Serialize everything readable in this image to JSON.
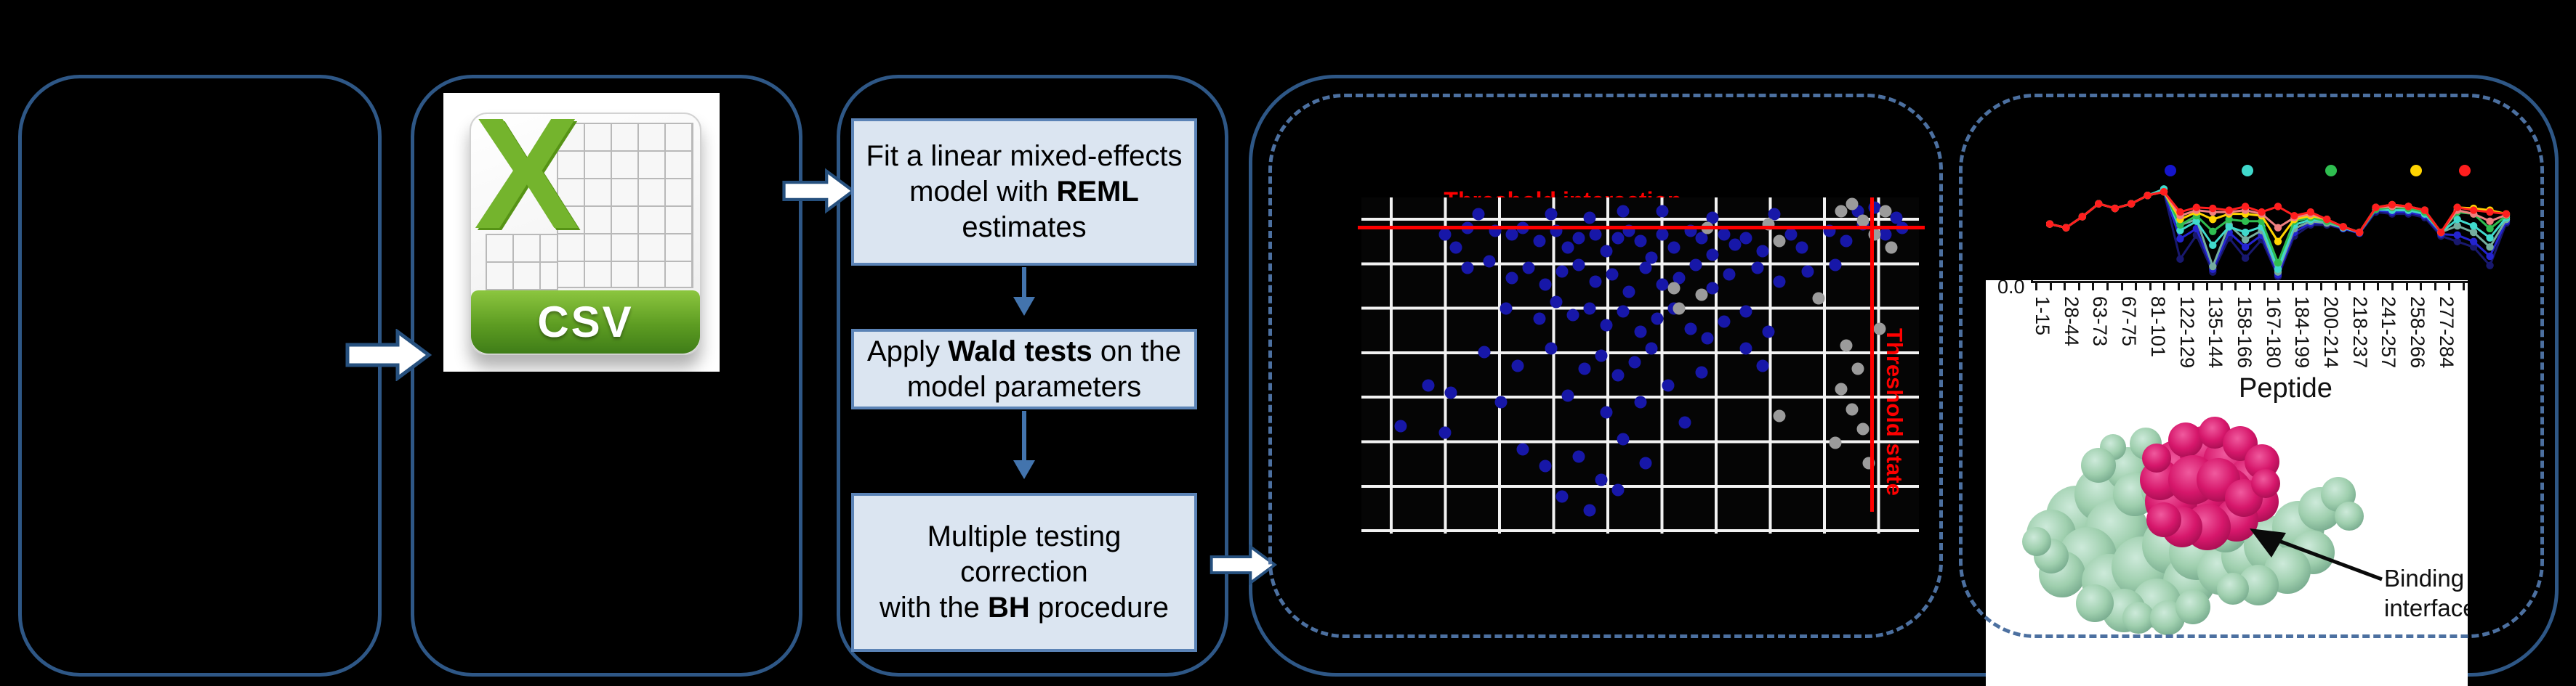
{
  "csv_icon": {
    "label": "CSV",
    "x_letter": "X"
  },
  "flowchart": {
    "step1": {
      "pre": "Fit a linear mixed-effects model with ",
      "bold": "REML",
      "post": " estimates"
    },
    "step2": {
      "pre": "Apply ",
      "bold": "Wald tests",
      "post": " on the model parameters"
    },
    "step3": {
      "line1": "Multiple testing",
      "line2": "correction",
      "line3_pre": "with the ",
      "line3_bold": "BH",
      "line3_post": " procedure"
    }
  },
  "protein": {
    "annotation": "Binding interface"
  },
  "colors": {
    "panel_border": "#2e5786",
    "dashed_border": "#4c70a0",
    "flow_box_fill": "#dbe5f1",
    "flow_box_border": "#5b83b6",
    "threshold_red": "#ff0000",
    "csv_green": "#74b42d",
    "scatter_blue": "#1717a8",
    "scatter_gray": "#9b9b9b",
    "protein_green": "#9fcfae",
    "protein_magenta": "#d6176b"
  },
  "chart_data": [
    {
      "type": "scatter",
      "title": "Threshold interaction",
      "vline_label": "Threshold state",
      "coords": "percent_of_plot_area",
      "grid": true,
      "series": [
        {
          "name": "interaction-points-blue",
          "color": "#1717a8",
          "points": [
            [
              21,
              5
            ],
            [
              34,
              5
            ],
            [
              41,
              6
            ],
            [
              47,
              4
            ],
            [
              54,
              4
            ],
            [
              74,
              5
            ],
            [
              89,
              4
            ],
            [
              92,
              3
            ],
            [
              96,
              6
            ],
            [
              63,
              6
            ],
            [
              15,
              11
            ],
            [
              17,
              15
            ],
            [
              19,
              9
            ],
            [
              24,
              10
            ],
            [
              27,
              11
            ],
            [
              29,
              9
            ],
            [
              32,
              13
            ],
            [
              35,
              10
            ],
            [
              37,
              15
            ],
            [
              39,
              12
            ],
            [
              42,
              11
            ],
            [
              44,
              16
            ],
            [
              46,
              12
            ],
            [
              48,
              10
            ],
            [
              50,
              13
            ],
            [
              52,
              18
            ],
            [
              54,
              11
            ],
            [
              56,
              15
            ],
            [
              59,
              10
            ],
            [
              61,
              12
            ],
            [
              63,
              17
            ],
            [
              65,
              11
            ],
            [
              67,
              14
            ],
            [
              69,
              12
            ],
            [
              72,
              16
            ],
            [
              77,
              11
            ],
            [
              79,
              15
            ],
            [
              84,
              10
            ],
            [
              87,
              13
            ],
            [
              90,
              8
            ],
            [
              94,
              11
            ],
            [
              97,
              9
            ],
            [
              19,
              21
            ],
            [
              23,
              19
            ],
            [
              27,
              24
            ],
            [
              30,
              21
            ],
            [
              33,
              26
            ],
            [
              36,
              22
            ],
            [
              39,
              20
            ],
            [
              42,
              25
            ],
            [
              45,
              23
            ],
            [
              48,
              28
            ],
            [
              51,
              21
            ],
            [
              54,
              26
            ],
            [
              57,
              24
            ],
            [
              60,
              20
            ],
            [
              63,
              27
            ],
            [
              66,
              23
            ],
            [
              71,
              21
            ],
            [
              75,
              25
            ],
            [
              80,
              22
            ],
            [
              85,
              20
            ],
            [
              26,
              33
            ],
            [
              32,
              36
            ],
            [
              35,
              31
            ],
            [
              38,
              35
            ],
            [
              41,
              33
            ],
            [
              44,
              38
            ],
            [
              47,
              34
            ],
            [
              50,
              40
            ],
            [
              53,
              36
            ],
            [
              56,
              33
            ],
            [
              59,
              39
            ],
            [
              62,
              42
            ],
            [
              65,
              37
            ],
            [
              69,
              34
            ],
            [
              73,
              40
            ],
            [
              22,
              46
            ],
            [
              28,
              50
            ],
            [
              34,
              45
            ],
            [
              40,
              51
            ],
            [
              43,
              47
            ],
            [
              46,
              53
            ],
            [
              49,
              49
            ],
            [
              52,
              45
            ],
            [
              55,
              56
            ],
            [
              61,
              52
            ],
            [
              12,
              56
            ],
            [
              69,
              45
            ],
            [
              72,
              50
            ],
            [
              16,
              58
            ],
            [
              25,
              61
            ],
            [
              37,
              59
            ],
            [
              44,
              64
            ],
            [
              50,
              61
            ],
            [
              58,
              67
            ],
            [
              7,
              68
            ],
            [
              15,
              70
            ],
            [
              29,
              75
            ],
            [
              33,
              80
            ],
            [
              39,
              77
            ],
            [
              43,
              84
            ],
            [
              47,
              72
            ],
            [
              51,
              79
            ],
            [
              36,
              89
            ],
            [
              41,
              93
            ],
            [
              46,
              87
            ]
          ]
        },
        {
          "name": "non-significant-points-gray",
          "color": "#9b9b9b",
          "points": [
            [
              56,
              27
            ],
            [
              57,
              33
            ],
            [
              61,
              29
            ],
            [
              73,
              8
            ],
            [
              75,
              13
            ],
            [
              86,
              4
            ],
            [
              88,
              2
            ],
            [
              90,
              7
            ],
            [
              92,
              11
            ],
            [
              94,
              4
            ],
            [
              95,
              15
            ],
            [
              87,
              44
            ],
            [
              89,
              51
            ],
            [
              86,
              57
            ],
            [
              88,
              63
            ],
            [
              90,
              69
            ],
            [
              85,
              73
            ],
            [
              75,
              65
            ],
            [
              91,
              79
            ],
            [
              93,
              39
            ],
            [
              62,
              9
            ],
            [
              82,
              30
            ]
          ]
        }
      ]
    },
    {
      "type": "line",
      "xlabel": "Peptide",
      "ytick_label": "0.0",
      "categories": [
        "1-15",
        "28-44",
        "63-73",
        "67-75",
        "81-101",
        "122-129",
        "135-144",
        "158-166",
        "167-180",
        "184-199",
        "200-214",
        "218-237",
        "241-257",
        "258-266",
        "277-284"
      ],
      "legend_colors": [
        "#1515cc",
        "#40d9cc",
        "#2fbe50",
        "#ffd400",
        "#ff1e1e"
      ],
      "y_unit": "percent_from_top_of_chart",
      "series": [
        {
          "name": "navy",
          "color": "#18186e",
          "values": [
            43,
            47,
            35,
            21,
            26,
            21,
            12,
            8,
            81,
            55,
            95,
            58,
            80,
            60,
            100,
            56,
            44,
            44,
            48,
            53,
            30,
            32,
            32,
            36,
            56,
            62,
            68,
            88,
            42
          ]
        },
        {
          "name": "blue",
          "color": "#2424cf",
          "values": [
            43,
            47,
            35,
            21,
            26,
            21,
            12,
            8,
            59,
            48,
            92,
            52,
            68,
            55,
            98,
            52,
            42,
            42,
            48,
            53,
            28,
            30,
            30,
            34,
            54,
            55,
            62,
            78,
            40
          ]
        },
        {
          "name": "teal",
          "color": "#74ad9f",
          "values": [
            43,
            47,
            35,
            21,
            26,
            21,
            12,
            8,
            44,
            38,
            89,
            44,
            60,
            50,
            95,
            48,
            40,
            42,
            47,
            52,
            27,
            28,
            28,
            32,
            52,
            45,
            52,
            68,
            38
          ]
        },
        {
          "name": "cyan",
          "color": "#40d9cc",
          "values": [
            43,
            47,
            35,
            21,
            26,
            21,
            12,
            5,
            50,
            40,
            66,
            46,
            52,
            46,
            92,
            44,
            38,
            40,
            47,
            52,
            27,
            28,
            28,
            32,
            52,
            38,
            45,
            58,
            36
          ]
        },
        {
          "name": "green",
          "color": "#2fbe50",
          "values": [
            43,
            47,
            35,
            21,
            26,
            21,
            12,
            8,
            44,
            34,
            51,
            38,
            40,
            40,
            85,
            40,
            36,
            40,
            46,
            52,
            27,
            25,
            26,
            30,
            52,
            30,
            32,
            48,
            34
          ]
        },
        {
          "name": "yellow",
          "color": "#ffd400",
          "values": [
            43,
            47,
            35,
            21,
            26,
            21,
            12,
            8,
            38,
            30,
            38,
            32,
            32,
            34,
            62,
            38,
            34,
            38,
            46,
            52,
            25,
            22,
            24,
            28,
            52,
            25,
            26,
            28,
            32
          ]
        },
        {
          "name": "salmon",
          "color": "#f08080",
          "values": [
            43,
            47,
            35,
            21,
            26,
            21,
            12,
            8,
            34,
            28,
            30,
            30,
            28,
            32,
            47,
            36,
            32,
            38,
            46,
            52,
            25,
            24,
            24,
            28,
            52,
            28,
            32,
            40,
            33
          ]
        },
        {
          "name": "red",
          "color": "#ff1e1e",
          "values": [
            43,
            47,
            35,
            21,
            26,
            21,
            12,
            8,
            30,
            25,
            26,
            28,
            24,
            30,
            24,
            34,
            30,
            38,
            46,
            52,
            25,
            22,
            24,
            28,
            52,
            25,
            28,
            30,
            32
          ]
        }
      ]
    }
  ]
}
